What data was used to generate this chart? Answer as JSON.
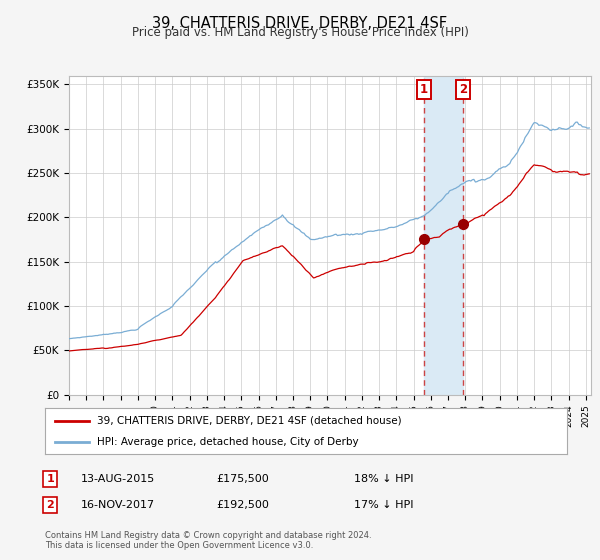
{
  "title": "39, CHATTERIS DRIVE, DERBY, DE21 4SF",
  "subtitle": "Price paid vs. HM Land Registry's House Price Index (HPI)",
  "legend_line1": "39, CHATTERIS DRIVE, DERBY, DE21 4SF (detached house)",
  "legend_line2": "HPI: Average price, detached house, City of Derby",
  "footnote1": "Contains HM Land Registry data © Crown copyright and database right 2024.",
  "footnote2": "This data is licensed under the Open Government Licence v3.0.",
  "sale1_label": "1",
  "sale2_label": "2",
  "sale1_date": "13-AUG-2015",
  "sale1_price": "£175,500",
  "sale1_hpi": "18% ↓ HPI",
  "sale2_date": "16-NOV-2017",
  "sale2_price": "£192,500",
  "sale2_hpi": "17% ↓ HPI",
  "sale1_year": 2015.617,
  "sale1_value": 175500,
  "sale2_year": 2017.878,
  "sale2_value": 192500,
  "red_line_color": "#cc0000",
  "blue_line_color": "#7aadd4",
  "highlight_color": "#daeaf5",
  "vline_color": "#cc4444",
  "marker_color": "#990000",
  "box_edge_color": "#cc0000",
  "ylim": [
    0,
    360000
  ],
  "yticks": [
    0,
    50000,
    100000,
    150000,
    200000,
    250000,
    300000,
    350000
  ],
  "ytick_labels": [
    "£0",
    "£50K",
    "£100K",
    "£150K",
    "£200K",
    "£250K",
    "£300K",
    "£350K"
  ],
  "xlim_start": 1995.0,
  "xlim_end": 2025.3,
  "background_color": "#f5f5f5",
  "plot_bg_color": "#ffffff",
  "grid_color": "#cccccc",
  "title_fontsize": 10.5,
  "subtitle_fontsize": 8.5
}
